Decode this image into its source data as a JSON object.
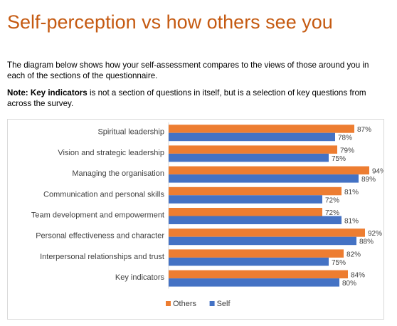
{
  "page": {
    "title": "Self-perception vs how others see you",
    "intro": "The diagram below shows how your self-assessment compares to the views of those around you in each of the sections of the questionnaire.",
    "note_bold": "Note: Key indicators",
    "note_rest": " is not a section of questions in itself, but is a selection of key questions from across the survey."
  },
  "chart_data": {
    "type": "bar",
    "orientation": "horizontal",
    "categories": [
      "Spiritual leadership",
      "Vision and strategic leadership",
      "Managing the organisation",
      "Communication and personal skills",
      "Team development and empowerment",
      "Personal effectiveness and character",
      "Interpersonal relationships and trust",
      "Key indicators"
    ],
    "series": [
      {
        "name": "Others",
        "color": "#ed7d31",
        "values": [
          87,
          79,
          94,
          81,
          72,
          92,
          82,
          84
        ]
      },
      {
        "name": "Self",
        "color": "#4472c4",
        "values": [
          78,
          75,
          89,
          72,
          81,
          88,
          75,
          80
        ]
      }
    ],
    "value_suffix": "%",
    "xlim": [
      0,
      100
    ],
    "grid": false,
    "legend": "bottom"
  }
}
